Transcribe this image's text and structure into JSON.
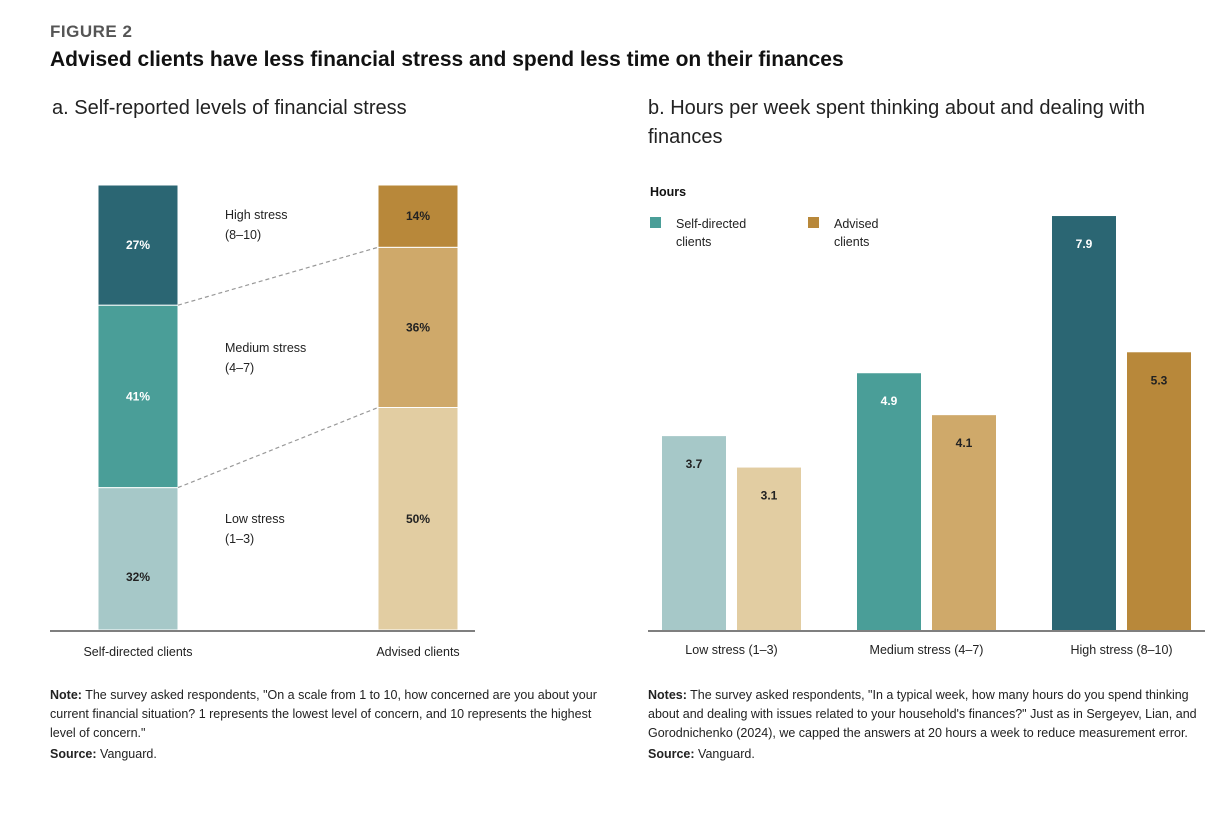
{
  "figure_label": "FIGURE 2",
  "title": "Advised clients have less financial stress and spend less time on their finances",
  "panel_a": {
    "title": "a. Self-reported levels of financial stress",
    "note_label": "Note:",
    "note_text": "The survey asked respondents, \"On a scale from 1 to 10, how concerned are you about your current financial situation? 1 represents the lowest level of concern, and 10 represents the highest level of concern.\"",
    "source_label": "Source:",
    "source_text": "Vanguard."
  },
  "panel_b": {
    "title": "b. Hours per week spent thinking about and dealing with finances",
    "note_label": "Notes:",
    "note_text": "The survey asked respondents, \"In a typical week, how many hours do you spend thinking about and dealing with issues related to your household's finances?\" Just as in Sergeyev, Lian, and Gorodnichenko (2024), we capped the answers at 20 hours a week to reduce measurement error.",
    "source_label": "Source:",
    "source_text": "Vanguard."
  },
  "colors": {
    "self_low": "#a6c8c8",
    "self_med": "#4a9e98",
    "self_high": "#2b6673",
    "adv_low": "#e2cda2",
    "adv_med": "#cfa96a",
    "adv_high": "#b8883a"
  },
  "chart_data": [
    {
      "type": "bar",
      "stacked": true,
      "title": "a. Self-reported levels of financial stress",
      "categories": [
        "Self-directed clients",
        "Advised clients"
      ],
      "series": [
        {
          "name": "Low stress (1–3)",
          "values": [
            32,
            50
          ],
          "labels": [
            "32%",
            "50%"
          ]
        },
        {
          "name": "Medium stress (4–7)",
          "values": [
            41,
            36
          ],
          "labels": [
            "41%",
            "36%"
          ]
        },
        {
          "name": "High stress (8–10)",
          "values": [
            27,
            14
          ],
          "labels": [
            "27%",
            "14%"
          ]
        }
      ],
      "segment_labels": [
        {
          "line1": "High stress",
          "line2": "(8–10)"
        },
        {
          "line1": "Medium stress",
          "line2": "(4–7)"
        },
        {
          "line1": "Low stress",
          "line2": "(1–3)"
        }
      ],
      "ylim": [
        0,
        100
      ]
    },
    {
      "type": "bar",
      "title": "b. Hours per week spent thinking about and dealing with finances",
      "ylabel": "Hours",
      "categories": [
        "Low stress (1–3)",
        "Medium stress (4–7)",
        "High stress (8–10)"
      ],
      "series": [
        {
          "name": "Self-directed clients",
          "legend_line1": "Self-directed",
          "legend_line2": "clients",
          "values": [
            3.7,
            4.9,
            7.9
          ]
        },
        {
          "name": "Advised clients",
          "legend_line1": "Advised",
          "legend_line2": "clients",
          "values": [
            3.1,
            4.1,
            5.3
          ]
        }
      ],
      "ylim": [
        0,
        8.5
      ],
      "legend": "top-left"
    }
  ]
}
